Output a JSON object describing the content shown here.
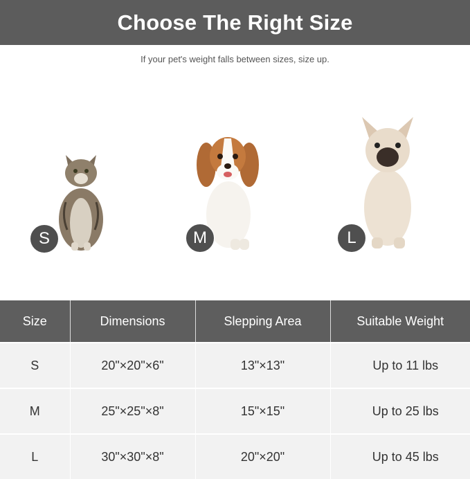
{
  "header": {
    "title": "Choose The Right Size",
    "subtitle": "If your pet's weight falls between sizes, size up."
  },
  "pets": [
    {
      "animal": "cat",
      "size_badge": "S"
    },
    {
      "animal": "cavalier-spaniel",
      "size_badge": "M"
    },
    {
      "animal": "french-bulldog",
      "size_badge": "L"
    }
  ],
  "table": {
    "headers": [
      "Size",
      "Dimensions",
      "Slepping Area",
      "Suitable Weight"
    ],
    "rows": [
      [
        "S",
        "20\"×20\"×6\"",
        "13\"×13\"",
        "Up to 11 lbs"
      ],
      [
        "M",
        "25\"×25\"×8\"",
        "15\"×15\"",
        "Up to 25 lbs"
      ],
      [
        "L",
        "30\"×30\"×8\"",
        "20\"×20\"",
        "Up to 45 lbs"
      ]
    ]
  },
  "colors": {
    "banner": "#5c5c5c",
    "badge": "#4f4f4f",
    "table_header": "#5e5e5e",
    "table_body": "#f2f2f2"
  }
}
